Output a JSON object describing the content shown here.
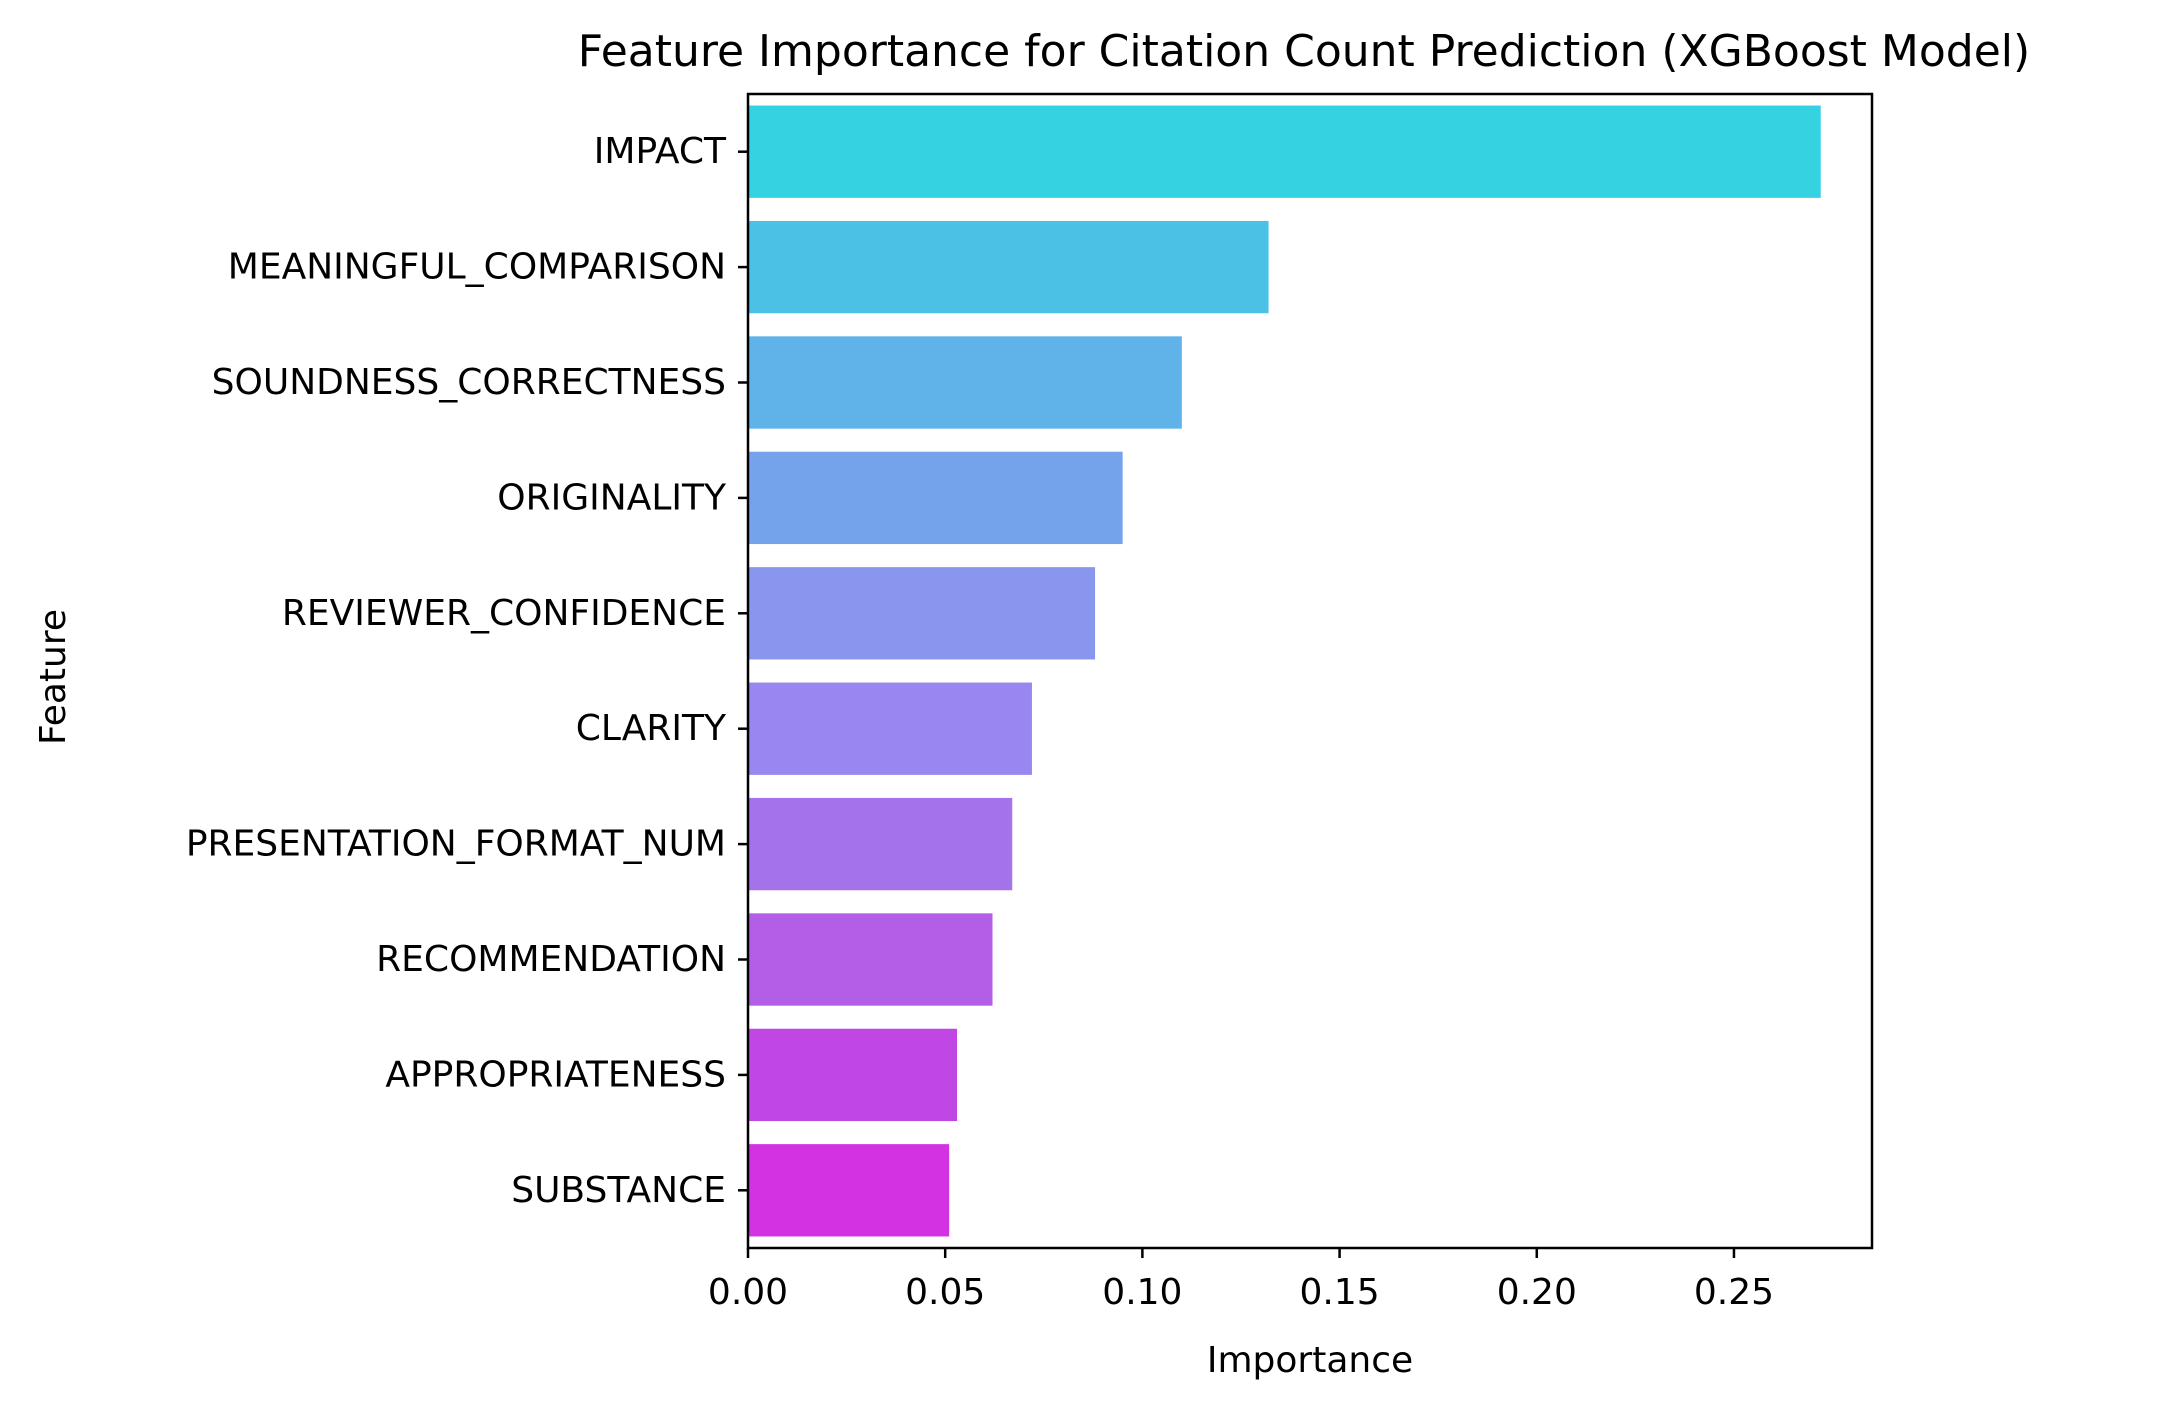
{
  "chart_data": {
    "type": "bar",
    "orientation": "horizontal",
    "title": "Feature Importance for Citation Count Prediction (XGBoost Model)",
    "xlabel": "Importance",
    "ylabel": "Feature",
    "categories": [
      "IMPACT",
      "MEANINGFUL_COMPARISON",
      "SOUNDNESS_CORRECTNESS",
      "ORIGINALITY",
      "REVIEWER_CONFIDENCE",
      "CLARITY",
      "PRESENTATION_FORMAT_NUM",
      "RECOMMENDATION",
      "APPROPRIATENESS",
      "SUBSTANCE"
    ],
    "values": [
      0.272,
      0.132,
      0.11,
      0.095,
      0.088,
      0.072,
      0.067,
      0.062,
      0.053,
      0.051
    ],
    "colors": [
      "#35d2e1",
      "#4bc2e5",
      "#5fb3e9",
      "#74a3eb",
      "#8996ed",
      "#9986ee",
      "#a473ec",
      "#b35ee6",
      "#c147e5",
      "#d232e2"
    ],
    "xlim": [
      0,
      0.285
    ],
    "xticks": [
      "0.00",
      "0.05",
      "0.10",
      "0.15",
      "0.20",
      "0.25"
    ],
    "xtick_values": [
      0,
      0.05,
      0.1,
      0.15,
      0.2,
      0.25
    ],
    "grid": false,
    "legend": "none"
  }
}
